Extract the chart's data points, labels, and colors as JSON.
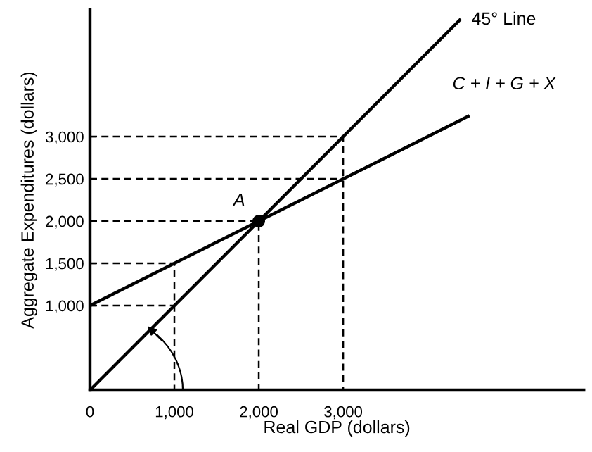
{
  "chart_data": {
    "type": "line",
    "xlabel": "Real GDP (dollars)",
    "ylabel": "Aggregate Expenditures (dollars)",
    "xlim": [
      0,
      5850
    ],
    "ylim": [
      0,
      4500
    ],
    "xticks": [
      0,
      {
        "value": 1000,
        "label": "1,000"
      },
      {
        "value": 2000,
        "label": "2,000"
      },
      {
        "value": 3000,
        "label": "3,000"
      }
    ],
    "yticks": [
      {
        "value": 1000,
        "label": "1,000"
      },
      {
        "value": 1500,
        "label": "1,500"
      },
      {
        "value": 2000,
        "label": "2,000"
      },
      {
        "value": 2500,
        "label": "2,500"
      },
      {
        "value": 3000,
        "label": "3,000"
      }
    ],
    "grid": false,
    "legend": false,
    "series": [
      {
        "name": "45° Line",
        "color": "#000000",
        "x": [
          0,
          4380
        ],
        "values": [
          0,
          4380
        ],
        "line_style": "solid"
      },
      {
        "name": "C + I + G + X",
        "color": "#000000",
        "x": [
          0,
          4480
        ],
        "values": [
          1000,
          3240
        ],
        "line_style": "solid"
      },
      {
        "color": "#000000",
        "x": [
          0,
          1000,
          1000
        ],
        "values": [
          1500,
          1500,
          0
        ],
        "line_style": "dashed"
      },
      {
        "color": "#000000",
        "x": [
          0,
          1000
        ],
        "values": [
          1000,
          1000
        ],
        "line_style": "dashed"
      },
      {
        "color": "#000000",
        "x": [
          0,
          2000,
          2000
        ],
        "values": [
          2000,
          2000,
          0
        ],
        "line_style": "dashed"
      },
      {
        "color": "#000000",
        "x": [
          0,
          3000,
          3000
        ],
        "values": [
          3000,
          3000,
          0
        ],
        "line_style": "dashed"
      },
      {
        "color": "#000000",
        "x": [
          0,
          3000
        ],
        "values": [
          2500,
          2500
        ],
        "line_style": "dashed"
      },
      {
        "type": "scatter",
        "color": "#000000",
        "x": [
          2000
        ],
        "values": [
          2000
        ],
        "marker": "circle"
      }
    ],
    "annotations": [
      {
        "text": "A",
        "x": 2000,
        "y": 2000
      }
    ]
  }
}
